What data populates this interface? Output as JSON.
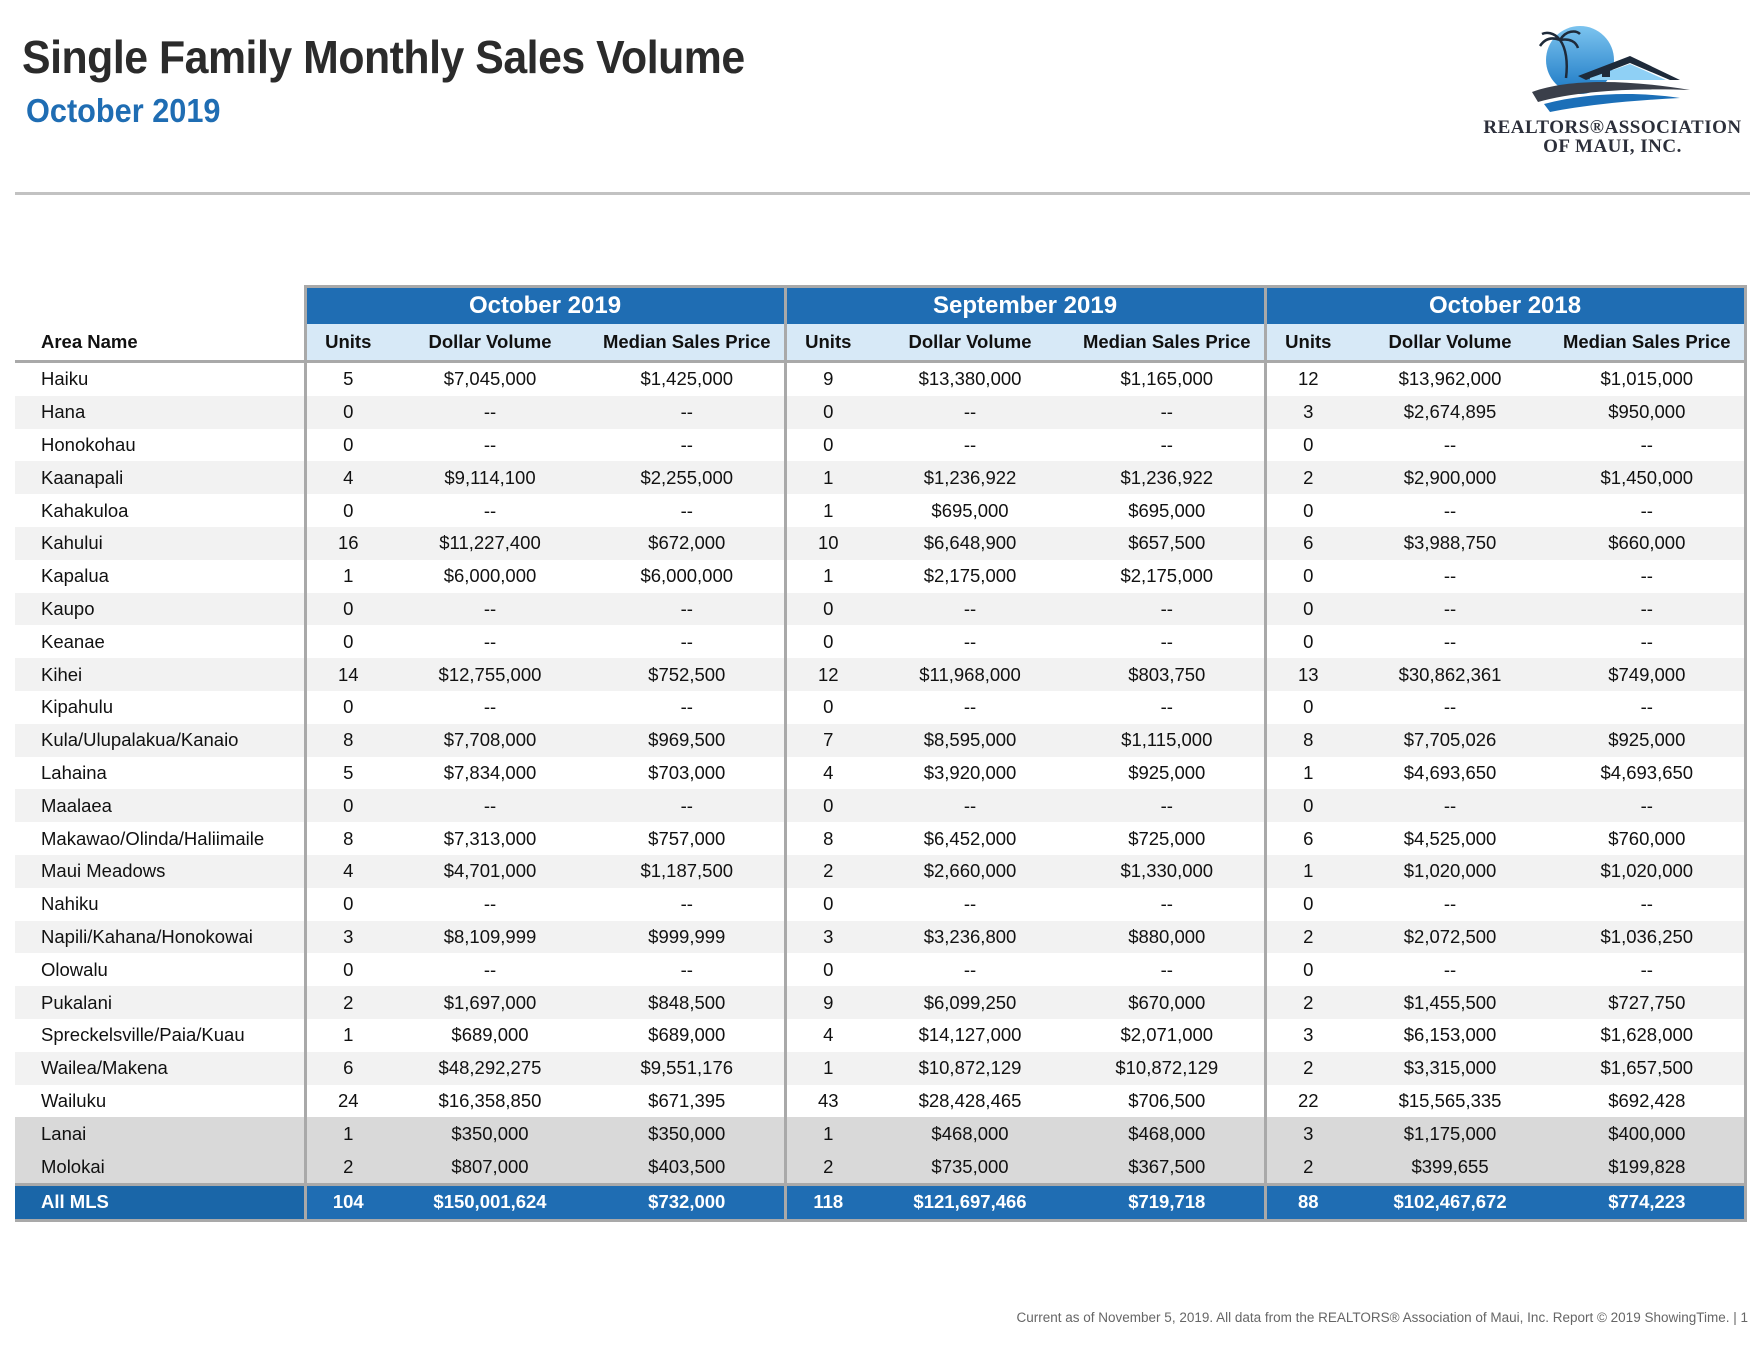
{
  "header": {
    "title": "Single Family Monthly Sales Volume",
    "subtitle": "October 2019"
  },
  "logo": {
    "line1": "REALTORS®ASSOCIATION",
    "line2": "OF MAUI, INC."
  },
  "table": {
    "periods": [
      "October 2019",
      "September 2019",
      "October 2018"
    ],
    "area_header": "Area Name",
    "col_headers": [
      "Units",
      "Dollar Volume",
      "Median Sales Price"
    ],
    "rows": [
      {
        "area": "Haiku",
        "v": [
          "5",
          "$7,045,000",
          "$1,425,000",
          "9",
          "$13,380,000",
          "$1,165,000",
          "12",
          "$13,962,000",
          "$1,015,000"
        ]
      },
      {
        "area": "Hana",
        "v": [
          "0",
          "--",
          "--",
          "0",
          "--",
          "--",
          "3",
          "$2,674,895",
          "$950,000"
        ]
      },
      {
        "area": "Honokohau",
        "v": [
          "0",
          "--",
          "--",
          "0",
          "--",
          "--",
          "0",
          "--",
          "--"
        ]
      },
      {
        "area": "Kaanapali",
        "v": [
          "4",
          "$9,114,100",
          "$2,255,000",
          "1",
          "$1,236,922",
          "$1,236,922",
          "2",
          "$2,900,000",
          "$1,450,000"
        ]
      },
      {
        "area": "Kahakuloa",
        "v": [
          "0",
          "--",
          "--",
          "1",
          "$695,000",
          "$695,000",
          "0",
          "--",
          "--"
        ]
      },
      {
        "area": "Kahului",
        "v": [
          "16",
          "$11,227,400",
          "$672,000",
          "10",
          "$6,648,900",
          "$657,500",
          "6",
          "$3,988,750",
          "$660,000"
        ]
      },
      {
        "area": "Kapalua",
        "v": [
          "1",
          "$6,000,000",
          "$6,000,000",
          "1",
          "$2,175,000",
          "$2,175,000",
          "0",
          "--",
          "--"
        ]
      },
      {
        "area": "Kaupo",
        "v": [
          "0",
          "--",
          "--",
          "0",
          "--",
          "--",
          "0",
          "--",
          "--"
        ]
      },
      {
        "area": "Keanae",
        "v": [
          "0",
          "--",
          "--",
          "0",
          "--",
          "--",
          "0",
          "--",
          "--"
        ]
      },
      {
        "area": "Kihei",
        "v": [
          "14",
          "$12,755,000",
          "$752,500",
          "12",
          "$11,968,000",
          "$803,750",
          "13",
          "$30,862,361",
          "$749,000"
        ]
      },
      {
        "area": "Kipahulu",
        "v": [
          "0",
          "--",
          "--",
          "0",
          "--",
          "--",
          "0",
          "--",
          "--"
        ]
      },
      {
        "area": "Kula/Ulupalakua/Kanaio",
        "v": [
          "8",
          "$7,708,000",
          "$969,500",
          "7",
          "$8,595,000",
          "$1,115,000",
          "8",
          "$7,705,026",
          "$925,000"
        ]
      },
      {
        "area": "Lahaina",
        "v": [
          "5",
          "$7,834,000",
          "$703,000",
          "4",
          "$3,920,000",
          "$925,000",
          "1",
          "$4,693,650",
          "$4,693,650"
        ]
      },
      {
        "area": "Maalaea",
        "v": [
          "0",
          "--",
          "--",
          "0",
          "--",
          "--",
          "0",
          "--",
          "--"
        ]
      },
      {
        "area": "Makawao/Olinda/Haliimaile",
        "v": [
          "8",
          "$7,313,000",
          "$757,000",
          "8",
          "$6,452,000",
          "$725,000",
          "6",
          "$4,525,000",
          "$760,000"
        ]
      },
      {
        "area": "Maui Meadows",
        "v": [
          "4",
          "$4,701,000",
          "$1,187,500",
          "2",
          "$2,660,000",
          "$1,330,000",
          "1",
          "$1,020,000",
          "$1,020,000"
        ]
      },
      {
        "area": "Nahiku",
        "v": [
          "0",
          "--",
          "--",
          "0",
          "--",
          "--",
          "0",
          "--",
          "--"
        ]
      },
      {
        "area": "Napili/Kahana/Honokowai",
        "v": [
          "3",
          "$8,109,999",
          "$999,999",
          "3",
          "$3,236,800",
          "$880,000",
          "2",
          "$2,072,500",
          "$1,036,250"
        ]
      },
      {
        "area": "Olowalu",
        "v": [
          "0",
          "--",
          "--",
          "0",
          "--",
          "--",
          "0",
          "--",
          "--"
        ]
      },
      {
        "area": "Pukalani",
        "v": [
          "2",
          "$1,697,000",
          "$848,500",
          "9",
          "$6,099,250",
          "$670,000",
          "2",
          "$1,455,500",
          "$727,750"
        ]
      },
      {
        "area": "Spreckelsville/Paia/Kuau",
        "v": [
          "1",
          "$689,000",
          "$689,000",
          "4",
          "$14,127,000",
          "$2,071,000",
          "3",
          "$6,153,000",
          "$1,628,000"
        ]
      },
      {
        "area": "Wailea/Makena",
        "v": [
          "6",
          "$48,292,275",
          "$9,551,176",
          "1",
          "$10,872,129",
          "$10,872,129",
          "2",
          "$3,315,000",
          "$1,657,500"
        ]
      },
      {
        "area": "Wailuku",
        "v": [
          "24",
          "$16,358,850",
          "$671,395",
          "43",
          "$28,428,465",
          "$706,500",
          "22",
          "$15,565,335",
          "$692,428"
        ]
      },
      {
        "area": "Lanai",
        "v": [
          "1",
          "$350,000",
          "$350,000",
          "1",
          "$468,000",
          "$468,000",
          "3",
          "$1,175,000",
          "$400,000"
        ],
        "kind": "island"
      },
      {
        "area": "Molokai",
        "v": [
          "2",
          "$807,000",
          "$403,500",
          "2",
          "$735,000",
          "$367,500",
          "2",
          "$399,655",
          "$199,828"
        ],
        "kind": "island"
      }
    ],
    "total": {
      "area": "All MLS",
      "v": [
        "104",
        "$150,001,624",
        "$732,000",
        "118",
        "$121,697,466",
        "$719,718",
        "88",
        "$102,467,672",
        "$774,223"
      ]
    }
  },
  "footer": {
    "text": "Current as of November 5, 2019. All data from the REALTORS® Association of Maui, Inc. Report © 2019 ShowingTime.  |  1"
  }
}
